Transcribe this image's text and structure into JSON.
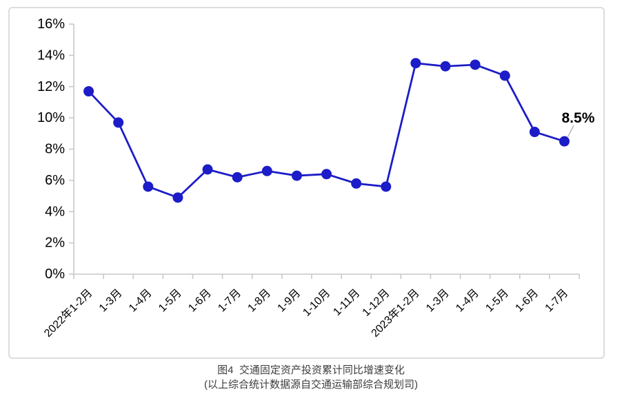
{
  "chart_data": {
    "type": "line",
    "title": "图4  交通固定资产投资累计同比增速变化",
    "subtitle": "(以上综合统计数据源自交通运输部综合规划司)",
    "categories": [
      "2022年1-2月",
      "1-3月",
      "1-4月",
      "1-5月",
      "1-6月",
      "1-7月",
      "1-8月",
      "1-9月",
      "1-10月",
      "1-11月",
      "1-12月",
      "2023年1-2月",
      "1-3月",
      "1-4月",
      "1-5月",
      "1-6月",
      "1-7月"
    ],
    "values": [
      11.7,
      9.7,
      5.6,
      4.9,
      6.7,
      6.2,
      6.6,
      6.3,
      6.4,
      5.8,
      5.6,
      13.5,
      13.3,
      13.4,
      12.7,
      9.1,
      8.5
    ],
    "xlabel": "",
    "ylabel": "",
    "ylim": [
      0,
      16
    ],
    "ytick_step": 2,
    "ytick_labels": [
      "0%",
      "2%",
      "4%",
      "6%",
      "8%",
      "10%",
      "12%",
      "14%",
      "16%"
    ],
    "grid": false,
    "legend": false,
    "annotation": {
      "text": "8.5%",
      "point_index": 16
    },
    "colors": {
      "line": "#1C1CC8",
      "marker": "#1C1CC8",
      "axis": "#C8C8C8",
      "tick_label": "#000000",
      "annotation_text": "#000000",
      "leader_line": "#A6A6A6",
      "panel_border": "#DCDCDC",
      "caption_text": "#3D3D3D"
    }
  }
}
